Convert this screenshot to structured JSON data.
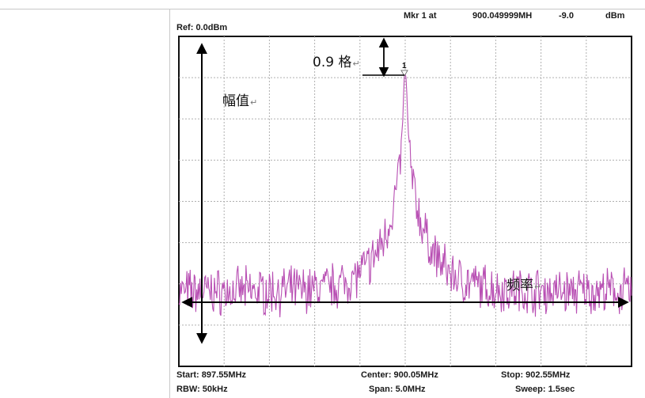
{
  "header": {
    "ref": "Ref: 0.0dBm",
    "marker_label": "Mkr 1 at",
    "marker_freq": "900.049999MH",
    "marker_level": "-9.0",
    "unit": "dBm"
  },
  "marker": {
    "number": "1"
  },
  "annotations": {
    "offset": "0.9 格",
    "amplitude": "幅值",
    "frequency": "频率",
    "return_mark": "↵"
  },
  "footer": {
    "start": "Start: 897.55MHz",
    "center": "Center: 900.05MHz",
    "stop": "Stop: 902.55MHz",
    "rbw": "RBW: 50kHz",
    "span": "Span: 5.0MHz",
    "sweep": "Sweep: 1.5sec"
  },
  "spectrum": {
    "start_mhz": 897.55,
    "stop_mhz": 902.55,
    "center_mhz": 900.05,
    "peak_mhz": 900.049999,
    "peak_dbm": -9.0,
    "noise_floor_dbm": -62,
    "ref_dbm": 0,
    "db_per_div": 10,
    "divisions_x": 10,
    "divisions_y": 8,
    "trace_color": "#b84fb3",
    "grid_color": "#b0b0b0"
  }
}
